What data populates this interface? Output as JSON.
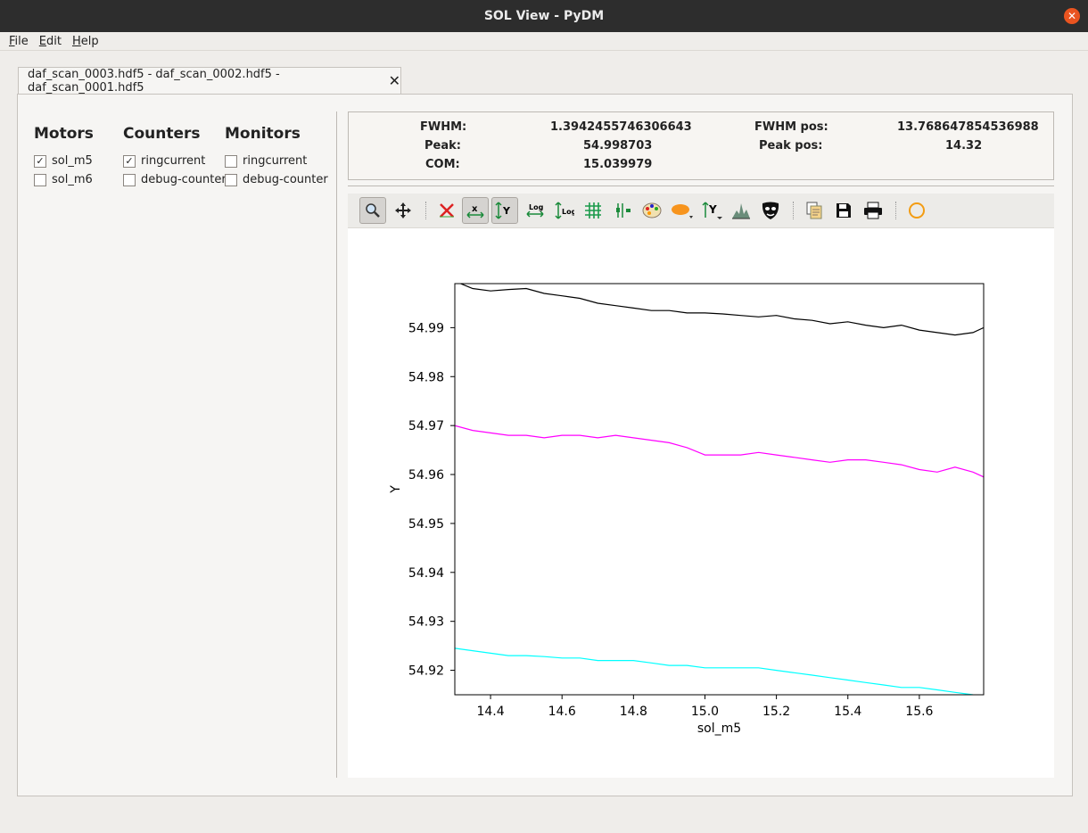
{
  "window": {
    "title": "SOL View - PyDM",
    "close_glyph": "✕"
  },
  "menu": [
    {
      "accel": "F",
      "rest": "ile"
    },
    {
      "accel": "E",
      "rest": "dit"
    },
    {
      "accel": "H",
      "rest": "elp"
    }
  ],
  "tab": {
    "label": "daf_scan_0003.hdf5 - daf_scan_0002.hdf5 - daf_scan_0001.hdf5",
    "close_glyph": "✕"
  },
  "panels": {
    "motors": {
      "title": "Motors",
      "items": [
        {
          "label": "sol_m5",
          "checked": true
        },
        {
          "label": "sol_m6",
          "checked": false
        }
      ]
    },
    "counters": {
      "title": "Counters",
      "items": [
        {
          "label": "ringcurrent",
          "checked": true
        },
        {
          "label": "debug-counter",
          "checked": false
        }
      ]
    },
    "monitors": {
      "title": "Monitors",
      "items": [
        {
          "label": "ringcurrent",
          "checked": false
        },
        {
          "label": "debug-counter",
          "checked": false
        }
      ]
    }
  },
  "stats": {
    "fwhm_label": "FWHM:",
    "fwhm_value": "1.3942455746306643",
    "fwhm_pos_label": "FWHM pos:",
    "fwhm_pos_value": "13.768647854536988",
    "peak_label": "Peak:",
    "peak_value": "54.998703",
    "peak_pos_label": "Peak pos:",
    "peak_pos_value": "14.32",
    "com_label": "COM:",
    "com_value": "15.039979"
  },
  "toolbar": [
    {
      "name": "zoom-icon",
      "pressed": true
    },
    {
      "name": "pan-icon",
      "pressed": false
    },
    {
      "name": "reset-zoom-icon",
      "pressed": false
    },
    {
      "name": "autoscale-x-icon",
      "pressed": true
    },
    {
      "name": "autoscale-y-icon",
      "pressed": true
    },
    {
      "name": "log-x-icon",
      "pressed": false
    },
    {
      "name": "log-y-icon",
      "pressed": false
    },
    {
      "name": "grid-icon",
      "pressed": false
    },
    {
      "name": "curve-style-icon",
      "pressed": false
    },
    {
      "name": "colormap-icon",
      "pressed": false
    },
    {
      "name": "symbol-icon",
      "pressed": false
    },
    {
      "name": "y-axis-icon",
      "pressed": false
    },
    {
      "name": "fit-icon",
      "pressed": false
    },
    {
      "name": "mask-icon",
      "pressed": false
    },
    {
      "name": "copy-icon",
      "pressed": false
    },
    {
      "name": "save-icon",
      "pressed": false
    },
    {
      "name": "print-icon",
      "pressed": false
    },
    {
      "name": "position-icon",
      "pressed": false
    }
  ],
  "chart_data": {
    "type": "line",
    "xlabel": "sol_m5",
    "ylabel": "Y",
    "xlim": [
      14.3,
      15.78
    ],
    "ylim": [
      54.915,
      54.999
    ],
    "xticks": [
      "14.4",
      "14.6",
      "14.8",
      "15.0",
      "15.2",
      "15.4",
      "15.6"
    ],
    "xtick_values": [
      14.4,
      14.6,
      14.8,
      15.0,
      15.2,
      15.4,
      15.6
    ],
    "yticks": [
      "54.92",
      "54.93",
      "54.94",
      "54.95",
      "54.96",
      "54.97",
      "54.98",
      "54.99"
    ],
    "ytick_values": [
      54.92,
      54.93,
      54.94,
      54.95,
      54.96,
      54.97,
      54.98,
      54.99
    ],
    "grid": false,
    "series": [
      {
        "color": "#000000",
        "x": [
          14.3,
          14.35,
          14.4,
          14.45,
          14.5,
          14.55,
          14.6,
          14.65,
          14.7,
          14.75,
          14.8,
          14.85,
          14.9,
          14.95,
          15.0,
          15.05,
          15.1,
          15.15,
          15.2,
          15.25,
          15.3,
          15.35,
          15.4,
          15.45,
          15.5,
          15.55,
          15.6,
          15.65,
          15.7,
          15.75,
          15.78
        ],
        "y": [
          54.9995,
          54.998,
          54.9975,
          54.9978,
          54.998,
          54.997,
          54.9965,
          54.996,
          54.995,
          54.9945,
          54.994,
          54.9935,
          54.9935,
          54.993,
          54.993,
          54.9928,
          54.9925,
          54.9922,
          54.9925,
          54.9918,
          54.9915,
          54.9908,
          54.9912,
          54.9905,
          54.99,
          54.9905,
          54.9895,
          54.989,
          54.9885,
          54.989,
          54.99
        ]
      },
      {
        "color": "#ff00ff",
        "x": [
          14.3,
          14.35,
          14.4,
          14.45,
          14.5,
          14.55,
          14.6,
          14.65,
          14.7,
          14.75,
          14.8,
          14.85,
          14.9,
          14.95,
          15.0,
          15.05,
          15.1,
          15.15,
          15.2,
          15.25,
          15.3,
          15.35,
          15.4,
          15.45,
          15.5,
          15.55,
          15.6,
          15.65,
          15.7,
          15.75,
          15.78
        ],
        "y": [
          54.97,
          54.969,
          54.9685,
          54.968,
          54.968,
          54.9675,
          54.968,
          54.968,
          54.9675,
          54.968,
          54.9675,
          54.967,
          54.9665,
          54.9655,
          54.964,
          54.964,
          54.964,
          54.9645,
          54.964,
          54.9635,
          54.963,
          54.9625,
          54.963,
          54.963,
          54.9625,
          54.962,
          54.961,
          54.9605,
          54.9615,
          54.9605,
          54.9595
        ]
      },
      {
        "color": "#00ffff",
        "x": [
          14.3,
          14.35,
          14.4,
          14.45,
          14.5,
          14.55,
          14.6,
          14.65,
          14.7,
          14.75,
          14.8,
          14.85,
          14.9,
          14.95,
          15.0,
          15.05,
          15.1,
          15.15,
          15.2,
          15.25,
          15.3,
          15.35,
          15.4,
          15.45,
          15.5,
          15.55,
          15.6,
          15.65,
          15.7,
          15.75
        ],
        "y": [
          54.9245,
          54.924,
          54.9235,
          54.923,
          54.923,
          54.9228,
          54.9225,
          54.9225,
          54.922,
          54.922,
          54.922,
          54.9215,
          54.921,
          54.921,
          54.9205,
          54.9205,
          54.9205,
          54.9205,
          54.92,
          54.9195,
          54.919,
          54.9185,
          54.918,
          54.9175,
          54.917,
          54.9165,
          54.9165,
          54.916,
          54.9155,
          54.915
        ]
      }
    ]
  }
}
